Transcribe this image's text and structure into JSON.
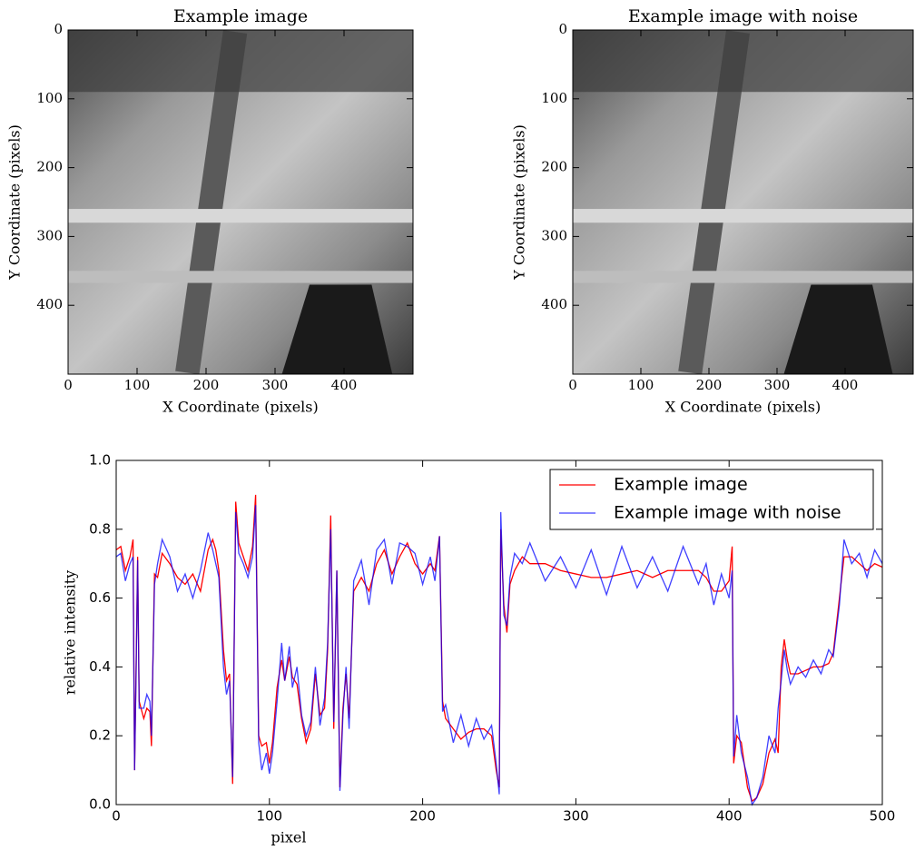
{
  "chart_data": [
    {
      "type": "image",
      "title": "Example image",
      "xlabel": "X Coordinate (pixels)",
      "ylabel": "Y Coordinate (pixels)",
      "xlim": [
        0,
        500
      ],
      "ylim": [
        500,
        0
      ],
      "xticks": [
        0,
        100,
        200,
        300,
        400
      ],
      "yticks": [
        0,
        100,
        200,
        300,
        400
      ]
    },
    {
      "type": "image",
      "title": "Example image with noise",
      "xlabel": "X Coordinate (pixels)",
      "ylabel": "Y Coordinate (pixels)",
      "xlim": [
        0,
        500
      ],
      "ylim": [
        500,
        0
      ],
      "xticks": [
        0,
        100,
        200,
        300,
        400
      ],
      "yticks": [
        0,
        100,
        200,
        300,
        400
      ]
    },
    {
      "type": "line",
      "xlabel": "pixel",
      "ylabel": "relative intensity",
      "xlim": [
        0,
        500
      ],
      "ylim": [
        0,
        1
      ],
      "xticks": [
        0,
        100,
        200,
        300,
        400,
        500
      ],
      "yticks": [
        {
          "value": 0,
          "label": "0.0"
        },
        {
          "value": 0.2,
          "label": "0.2"
        },
        {
          "value": 0.4,
          "label": "0.4"
        },
        {
          "value": 0.6,
          "label": "0.6"
        },
        {
          "value": 0.8,
          "label": "0.8"
        },
        {
          "value": 1,
          "label": "1.0"
        }
      ],
      "legend": "upper right",
      "x": [
        0,
        3,
        6,
        9,
        11,
        12,
        13,
        14,
        15,
        18,
        20,
        22,
        23,
        25,
        27,
        30,
        35,
        40,
        45,
        50,
        55,
        60,
        63,
        65,
        67,
        70,
        72,
        74,
        76,
        78,
        80,
        83,
        86,
        89,
        91,
        93,
        95,
        98,
        100,
        102,
        105,
        108,
        110,
        113,
        115,
        118,
        121,
        124,
        127,
        130,
        133,
        136,
        138,
        140,
        142,
        144,
        146,
        148,
        150,
        152,
        155,
        160,
        165,
        170,
        175,
        180,
        185,
        190,
        195,
        200,
        205,
        208,
        211,
        213,
        215,
        220,
        225,
        230,
        235,
        240,
        245,
        248,
        250,
        251,
        253,
        255,
        257,
        260,
        265,
        270,
        280,
        290,
        300,
        310,
        320,
        330,
        340,
        350,
        360,
        370,
        380,
        385,
        390,
        395,
        400,
        402,
        403,
        405,
        408,
        412,
        415,
        418,
        422,
        426,
        430,
        432,
        434,
        436,
        438,
        440,
        445,
        450,
        455,
        460,
        465,
        468,
        472,
        475,
        480,
        485,
        490,
        495,
        500
      ],
      "series": [
        {
          "name": "Example image",
          "color": "#ff0000",
          "opacity": 1,
          "values": [
            0.74,
            0.75,
            0.68,
            0.72,
            0.77,
            0.1,
            0.4,
            0.72,
            0.3,
            0.25,
            0.28,
            0.27,
            0.17,
            0.67,
            0.66,
            0.73,
            0.7,
            0.66,
            0.64,
            0.67,
            0.62,
            0.74,
            0.77,
            0.74,
            0.68,
            0.45,
            0.36,
            0.38,
            0.06,
            0.88,
            0.76,
            0.72,
            0.68,
            0.75,
            0.9,
            0.2,
            0.17,
            0.18,
            0.12,
            0.18,
            0.34,
            0.42,
            0.36,
            0.43,
            0.37,
            0.35,
            0.25,
            0.18,
            0.22,
            0.38,
            0.26,
            0.28,
            0.45,
            0.84,
            0.22,
            0.68,
            0.05,
            0.28,
            0.38,
            0.25,
            0.62,
            0.66,
            0.62,
            0.7,
            0.74,
            0.67,
            0.72,
            0.76,
            0.7,
            0.67,
            0.7,
            0.68,
            0.78,
            0.3,
            0.25,
            0.22,
            0.19,
            0.21,
            0.22,
            0.22,
            0.2,
            0.1,
            0.05,
            0.8,
            0.58,
            0.5,
            0.64,
            0.68,
            0.72,
            0.7,
            0.7,
            0.68,
            0.67,
            0.66,
            0.66,
            0.67,
            0.68,
            0.66,
            0.68,
            0.68,
            0.68,
            0.66,
            0.62,
            0.62,
            0.65,
            0.75,
            0.12,
            0.2,
            0.18,
            0.05,
            0.01,
            0.02,
            0.06,
            0.15,
            0.19,
            0.15,
            0.4,
            0.48,
            0.42,
            0.38,
            0.38,
            0.39,
            0.4,
            0.4,
            0.41,
            0.44,
            0.6,
            0.72,
            0.72,
            0.7,
            0.68,
            0.7,
            0.69
          ]
        },
        {
          "name": "Example image with noise",
          "color": "#0000ff",
          "opacity": 0.75,
          "values": [
            0.72,
            0.73,
            0.65,
            0.7,
            0.72,
            0.1,
            0.38,
            0.71,
            0.28,
            0.28,
            0.32,
            0.3,
            0.2,
            0.64,
            0.7,
            0.77,
            0.72,
            0.62,
            0.67,
            0.6,
            0.68,
            0.79,
            0.74,
            0.7,
            0.66,
            0.4,
            0.32,
            0.36,
            0.08,
            0.85,
            0.73,
            0.7,
            0.66,
            0.72,
            0.87,
            0.18,
            0.1,
            0.15,
            0.09,
            0.15,
            0.3,
            0.47,
            0.36,
            0.46,
            0.34,
            0.4,
            0.26,
            0.2,
            0.24,
            0.4,
            0.23,
            0.31,
            0.47,
            0.8,
            0.24,
            0.68,
            0.04,
            0.26,
            0.4,
            0.22,
            0.65,
            0.71,
            0.58,
            0.74,
            0.77,
            0.64,
            0.76,
            0.75,
            0.73,
            0.64,
            0.72,
            0.65,
            0.78,
            0.27,
            0.29,
            0.18,
            0.26,
            0.17,
            0.25,
            0.19,
            0.23,
            0.12,
            0.03,
            0.85,
            0.55,
            0.52,
            0.66,
            0.73,
            0.7,
            0.76,
            0.65,
            0.72,
            0.63,
            0.74,
            0.61,
            0.75,
            0.63,
            0.72,
            0.62,
            0.75,
            0.64,
            0.7,
            0.58,
            0.67,
            0.6,
            0.68,
            0.14,
            0.26,
            0.15,
            0.08,
            0.0,
            0.02,
            0.08,
            0.2,
            0.15,
            0.28,
            0.36,
            0.45,
            0.39,
            0.35,
            0.4,
            0.37,
            0.42,
            0.38,
            0.45,
            0.43,
            0.58,
            0.77,
            0.7,
            0.73,
            0.66,
            0.74,
            0.7
          ]
        }
      ]
    }
  ]
}
